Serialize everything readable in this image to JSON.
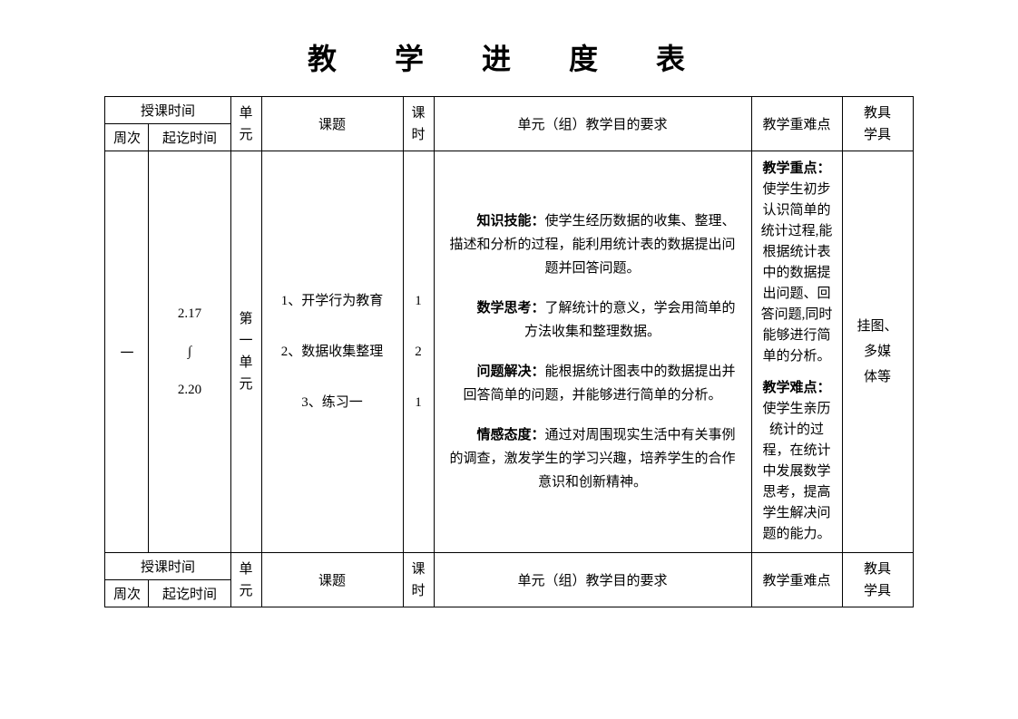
{
  "title": "教 学 进 度 表",
  "cols": {
    "time_span": "授课时间",
    "week": "周次",
    "period": "起讫时间",
    "unit": "单元",
    "topic": "课题",
    "hours": "课时",
    "goals": "单元（组）教学目的要求",
    "difficulty": "教学重难点",
    "tools": "教具学具"
  },
  "row1": {
    "week": "一",
    "period_start": "2.17",
    "period_conn": "∫",
    "period_end": "2.20",
    "unit": "第一单元",
    "topics": [
      {
        "idx": "1",
        "name": "开学行为教育",
        "hours": "1"
      },
      {
        "idx": "2",
        "name": "数据收集整理",
        "hours": "2"
      },
      {
        "idx": "3",
        "name": "练习一",
        "hours": "1"
      }
    ],
    "goals": {
      "k_label": "知识技能：",
      "k_body": "使学生经历数据的收集、整理、描述和分析的过程，能利用统计表的数据提出问题并回答问题。",
      "m_label": "数学思考：",
      "m_body": "了解统计的意义，学会用简单的方法收集和整理数据。",
      "p_label": "问题解决：",
      "p_body": "能根据统计图表中的数据提出并回答简单的问题，并能够进行简单的分析。",
      "e_label": "情感态度：",
      "e_body": "通过对周围现实生活中有关事例的调查，激发学生的学习兴趣，培养学生的合作意识和创新精神。"
    },
    "diff": {
      "focus_label": "教学重点：",
      "focus_body": "使学生初步认识简单的统计过程,能根据统计表中的数据提出问题、回答问题,同时能够进行简单的分析。",
      "hard_label": "教学难点：",
      "hard_body": "使学生亲历统计的过程，在统计中发展数学思考，提高学生解决问题的能力。"
    },
    "tools": "挂图、多媒体等"
  }
}
